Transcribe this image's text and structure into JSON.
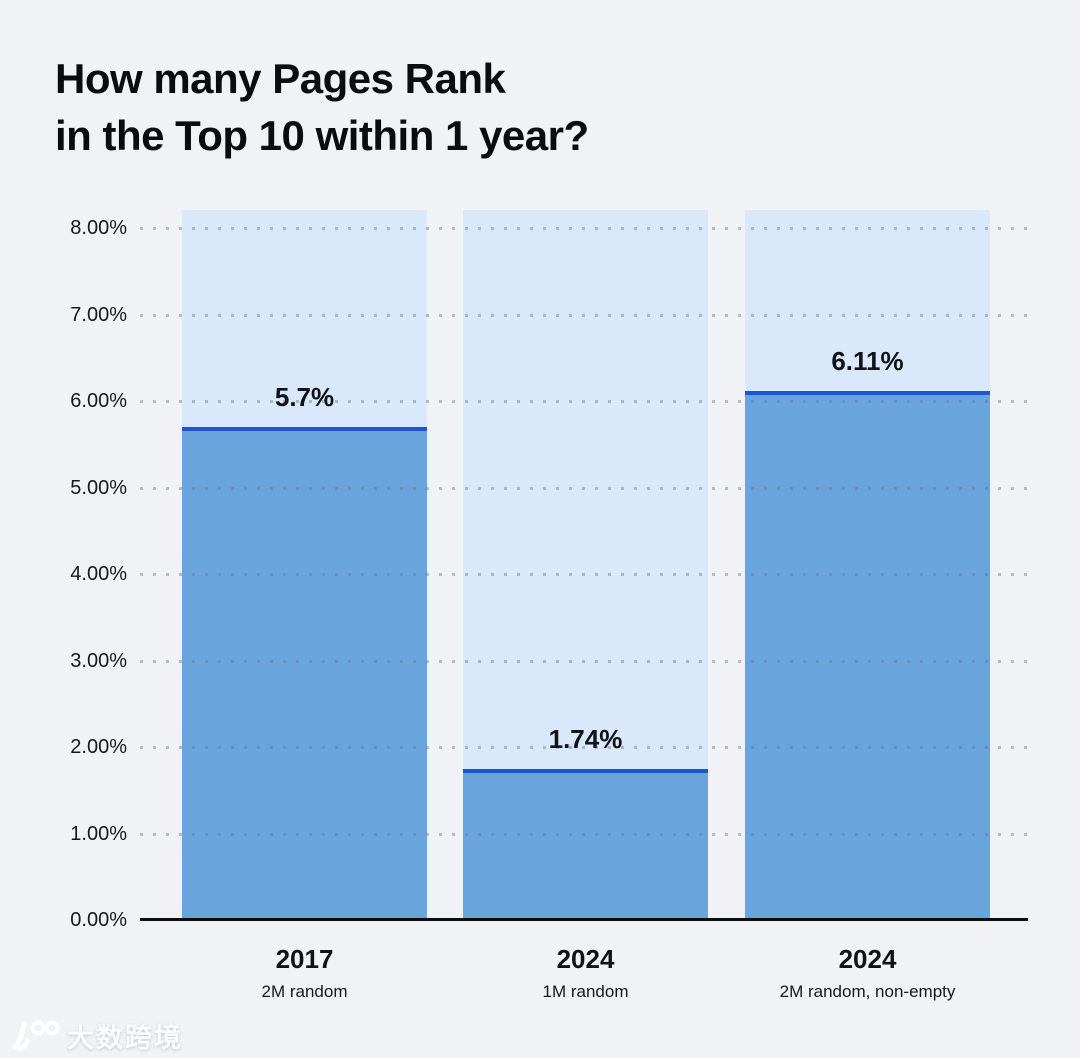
{
  "title": {
    "line1": "How many Pages Rank",
    "line2": "in the Top 10 within 1 year?"
  },
  "chart_data": {
    "type": "bar",
    "title": "How many Pages Rank in the Top 10 within 1 year?",
    "xlabel": "",
    "ylabel": "",
    "ylim": [
      0,
      8
    ],
    "grid": "dotted horizontal",
    "legend": "none",
    "y_ticks": [
      {
        "value": 8,
        "label": "8.00%"
      },
      {
        "value": 7,
        "label": "7.00%"
      },
      {
        "value": 6,
        "label": "6.00%"
      },
      {
        "value": 5,
        "label": "5.00%"
      },
      {
        "value": 4,
        "label": "4.00%"
      },
      {
        "value": 3,
        "label": "3.00%"
      },
      {
        "value": 2,
        "label": "2.00%"
      },
      {
        "value": 1,
        "label": "1.00%"
      },
      {
        "value": 0,
        "label": "0.00%"
      }
    ],
    "categories": [
      "2017",
      "2024",
      "2024"
    ],
    "bars": [
      {
        "year": "2017",
        "subtitle": "2M random",
        "value": 5.7,
        "label": "5.7%"
      },
      {
        "year": "2024",
        "subtitle": "1M random",
        "value": 1.74,
        "label": "1.74%"
      },
      {
        "year": "2024",
        "subtitle": "2M random, non-empty",
        "value": 6.11,
        "label": "6.11%"
      }
    ],
    "colors": {
      "background": "#f0f2f5",
      "bar_track": "#d9e8fa",
      "bar_fill": "#69a4dd",
      "bar_top_line": "#1e56d2",
      "axis_line": "#0b0c0e",
      "grid_dot": "#6e7a8f",
      "text": "#111216"
    }
  },
  "watermark": {
    "logo": "100-logo",
    "text": "大数跨境"
  }
}
